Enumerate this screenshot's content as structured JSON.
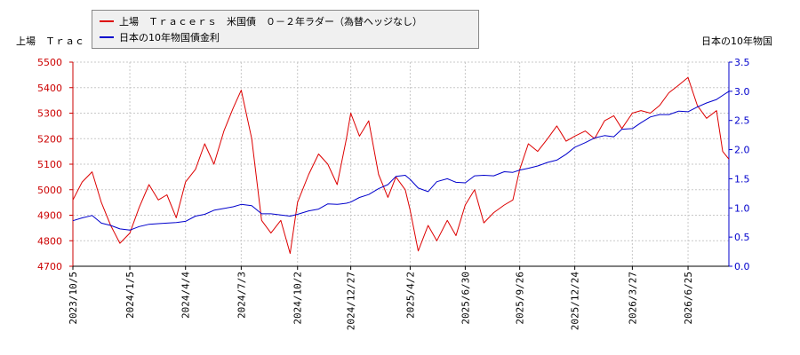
{
  "chart_data": {
    "type": "line",
    "left_axis_label": "上場　Ｔｒａｃ",
    "right_axis_label": "日本の10年物国",
    "x_ticks": [
      "2023/10/5",
      "2024/1/5",
      "2024/4/4",
      "2024/7/3",
      "2024/10/2",
      "2024/12/27",
      "2025/4/2",
      "2025/6/30",
      "2025/9/26",
      "2025/12/24",
      "2026/3/27",
      "2026/6/25"
    ],
    "y_left_ticks": [
      "4700",
      "4800",
      "4900",
      "5000",
      "5100",
      "5200",
      "5300",
      "5400",
      "5500"
    ],
    "y_right_ticks": [
      "0.0",
      "0.5",
      "1.0",
      "1.5",
      "2.0",
      "2.5",
      "3.0",
      "3.5"
    ],
    "y_left_range": [
      4700,
      5500
    ],
    "y_right_range": [
      0.0,
      3.5
    ],
    "grid": "dashed",
    "legend_position": "top",
    "series": [
      {
        "name": "上場　Ｔｒａｃｅｒｓ　米国債　０－２年ラダー（為替ヘッジなし）",
        "color": "#dd0000",
        "axis": "left",
        "points": [
          [
            "2023/10/5",
            4960
          ],
          [
            "2023/10/20",
            5030
          ],
          [
            "2023/11/5",
            5070
          ],
          [
            "2023/11/20",
            4950
          ],
          [
            "2023/12/5",
            4860
          ],
          [
            "2023/12/20",
            4790
          ],
          [
            "2024/1/5",
            4830
          ],
          [
            "2024/1/20",
            4930
          ],
          [
            "2024/2/5",
            5020
          ],
          [
            "2024/2/20",
            4960
          ],
          [
            "2024/3/5",
            4980
          ],
          [
            "2024/3/20",
            4890
          ],
          [
            "2024/4/4",
            5030
          ],
          [
            "2024/4/20",
            5080
          ],
          [
            "2024/5/5",
            5180
          ],
          [
            "2024/5/20",
            5100
          ],
          [
            "2024/6/5",
            5230
          ],
          [
            "2024/6/20",
            5320
          ],
          [
            "2024/7/3",
            5390
          ],
          [
            "2024/7/20",
            5200
          ],
          [
            "2024/8/5",
            4880
          ],
          [
            "2024/8/20",
            4830
          ],
          [
            "2024/9/5",
            4880
          ],
          [
            "2024/9/20",
            4750
          ],
          [
            "2024/10/2",
            4950
          ],
          [
            "2024/10/20",
            5060
          ],
          [
            "2024/11/5",
            5140
          ],
          [
            "2024/11/20",
            5100
          ],
          [
            "2024/12/5",
            5020
          ],
          [
            "2024/12/20",
            5200
          ],
          [
            "2024/12/27",
            5300
          ],
          [
            "2025/1/10",
            5210
          ],
          [
            "2025/1/25",
            5270
          ],
          [
            "2025/2/10",
            5060
          ],
          [
            "2025/2/25",
            4970
          ],
          [
            "2025/3/10",
            5050
          ],
          [
            "2025/3/25",
            5000
          ],
          [
            "2025/4/2",
            4920
          ],
          [
            "2025/4/15",
            4760
          ],
          [
            "2025/5/1",
            4860
          ],
          [
            "2025/5/15",
            4800
          ],
          [
            "2025/6/1",
            4880
          ],
          [
            "2025/6/15",
            4820
          ],
          [
            "2025/6/30",
            4940
          ],
          [
            "2025/7/15",
            5000
          ],
          [
            "2025/7/30",
            4870
          ],
          [
            "2025/8/15",
            4910
          ],
          [
            "2025/9/1",
            4940
          ],
          [
            "2025/9/15",
            4960
          ],
          [
            "2025/9/26",
            5080
          ],
          [
            "2025/10/10",
            5180
          ],
          [
            "2025/10/25",
            5150
          ],
          [
            "2025/11/10",
            5200
          ],
          [
            "2025/11/25",
            5250
          ],
          [
            "2025/12/10",
            5190
          ],
          [
            "2025/12/24",
            5210
          ],
          [
            "2026/1/10",
            5230
          ],
          [
            "2026/1/25",
            5200
          ],
          [
            "2026/2/10",
            5270
          ],
          [
            "2026/2/25",
            5290
          ],
          [
            "2026/3/10",
            5240
          ],
          [
            "2026/3/27",
            5300
          ],
          [
            "2026/4/10",
            5310
          ],
          [
            "2026/4/25",
            5300
          ],
          [
            "2026/5/10",
            5330
          ],
          [
            "2026/5/25",
            5380
          ],
          [
            "2026/6/10",
            5410
          ],
          [
            "2026/6/25",
            5440
          ],
          [
            "2026/7/10",
            5330
          ],
          [
            "2026/7/25",
            5280
          ],
          [
            "2026/8/10",
            5310
          ],
          [
            "2026/8/20",
            5150
          ],
          [
            "2026/8/30",
            5120
          ]
        ]
      },
      {
        "name": "日本の10年物国債金利",
        "color": "#0000cc",
        "axis": "right",
        "points": [
          [
            "2023/10/5",
            0.78
          ],
          [
            "2023/10/20",
            0.83
          ],
          [
            "2023/11/5",
            0.87
          ],
          [
            "2023/11/20",
            0.74
          ],
          [
            "2023/12/5",
            0.7
          ],
          [
            "2023/12/20",
            0.64
          ],
          [
            "2024/1/5",
            0.62
          ],
          [
            "2024/1/20",
            0.68
          ],
          [
            "2024/2/5",
            0.72
          ],
          [
            "2024/2/20",
            0.73
          ],
          [
            "2024/3/5",
            0.74
          ],
          [
            "2024/3/20",
            0.75
          ],
          [
            "2024/4/4",
            0.77
          ],
          [
            "2024/4/20",
            0.86
          ],
          [
            "2024/5/5",
            0.89
          ],
          [
            "2024/5/20",
            0.96
          ],
          [
            "2024/6/5",
            0.99
          ],
          [
            "2024/6/20",
            1.02
          ],
          [
            "2024/7/3",
            1.06
          ],
          [
            "2024/7/20",
            1.04
          ],
          [
            "2024/8/5",
            0.9
          ],
          [
            "2024/8/20",
            0.9
          ],
          [
            "2024/9/5",
            0.88
          ],
          [
            "2024/9/20",
            0.86
          ],
          [
            "2024/10/2",
            0.89
          ],
          [
            "2024/10/20",
            0.95
          ],
          [
            "2024/11/5",
            0.98
          ],
          [
            "2024/11/20",
            1.07
          ],
          [
            "2024/12/5",
            1.06
          ],
          [
            "2024/12/20",
            1.08
          ],
          [
            "2024/12/27",
            1.1
          ],
          [
            "2025/1/10",
            1.18
          ],
          [
            "2025/1/25",
            1.23
          ],
          [
            "2025/2/10",
            1.33
          ],
          [
            "2025/2/25",
            1.4
          ],
          [
            "2025/3/10",
            1.54
          ],
          [
            "2025/3/25",
            1.56
          ],
          [
            "2025/4/2",
            1.49
          ],
          [
            "2025/4/15",
            1.34
          ],
          [
            "2025/5/1",
            1.28
          ],
          [
            "2025/5/15",
            1.45
          ],
          [
            "2025/6/1",
            1.5
          ],
          [
            "2025/6/15",
            1.44
          ],
          [
            "2025/6/30",
            1.43
          ],
          [
            "2025/7/15",
            1.55
          ],
          [
            "2025/7/30",
            1.56
          ],
          [
            "2025/8/15",
            1.55
          ],
          [
            "2025/9/1",
            1.62
          ],
          [
            "2025/9/15",
            1.61
          ],
          [
            "2025/9/26",
            1.65
          ],
          [
            "2025/10/10",
            1.68
          ],
          [
            "2025/10/25",
            1.72
          ],
          [
            "2025/11/10",
            1.78
          ],
          [
            "2025/11/25",
            1.82
          ],
          [
            "2025/12/10",
            1.92
          ],
          [
            "2025/12/24",
            2.04
          ],
          [
            "2026/1/10",
            2.12
          ],
          [
            "2026/1/25",
            2.2
          ],
          [
            "2026/2/10",
            2.24
          ],
          [
            "2026/2/25",
            2.22
          ],
          [
            "2026/3/10",
            2.35
          ],
          [
            "2026/3/27",
            2.36
          ],
          [
            "2026/4/10",
            2.46
          ],
          [
            "2026/4/25",
            2.56
          ],
          [
            "2026/5/10",
            2.6
          ],
          [
            "2026/5/25",
            2.6
          ],
          [
            "2026/6/10",
            2.66
          ],
          [
            "2026/6/25",
            2.65
          ],
          [
            "2026/7/10",
            2.73
          ],
          [
            "2026/7/25",
            2.8
          ],
          [
            "2026/8/10",
            2.86
          ],
          [
            "2026/8/20",
            2.93
          ],
          [
            "2026/8/30",
            3.0
          ]
        ]
      }
    ]
  }
}
